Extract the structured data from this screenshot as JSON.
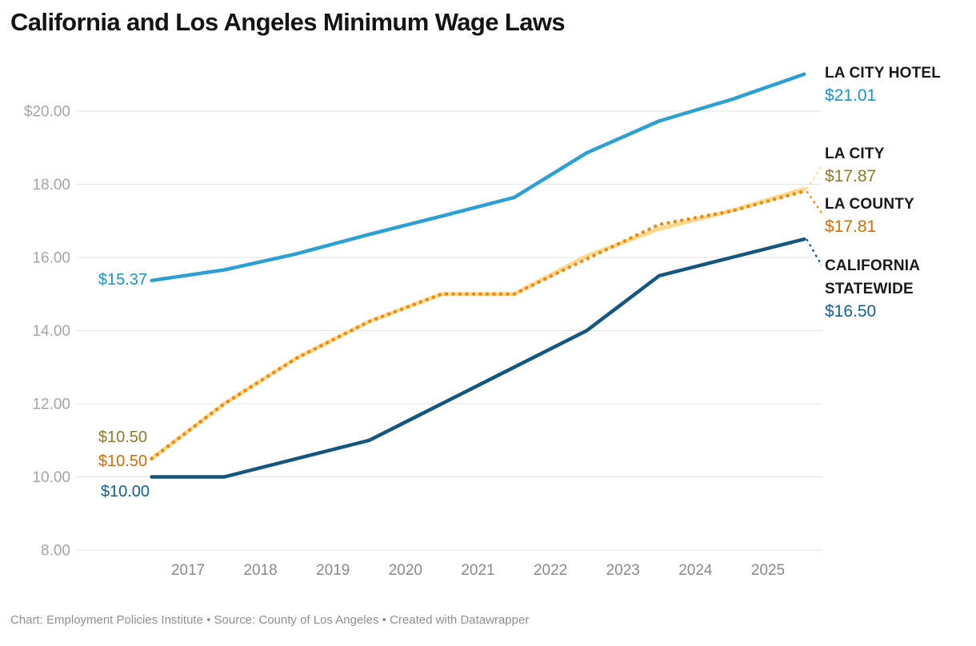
{
  "title": "California and Los Angeles Minimum Wage Laws",
  "footer": "Chart: Employment Policies Institute • Source: County of Los Angeles • Created with Datawrapper",
  "chart_data": {
    "type": "line",
    "title": "California and Los Angeles Minimum Wage Laws",
    "x": [
      2016.5,
      2017.5,
      2018.5,
      2019.5,
      2020.5,
      2021.5,
      2022.5,
      2023.5,
      2024.5,
      2025.5
    ],
    "x_tick_years": [
      2017,
      2018,
      2019,
      2020,
      2021,
      2022,
      2023,
      2024,
      2025
    ],
    "x_tick_labels": [
      "2017",
      "2018",
      "2019",
      "2020",
      "2021",
      "2022",
      "2023",
      "2024",
      "2025"
    ],
    "y_ticks": [
      20,
      18,
      16,
      14,
      12,
      10,
      8
    ],
    "y_tick_labels": [
      "$20.00",
      "18.00",
      "16.00",
      "14.00",
      "12.00",
      "10.00",
      "8.00"
    ],
    "ylim": [
      6.9,
      21.8
    ],
    "grid": true,
    "legend_position": "right-edge-direct-labels",
    "series": [
      {
        "id": "la-city-hotel",
        "name": "LA CITY HOTEL",
        "name_lines": [
          "LA CITY HOTEL"
        ],
        "color": "#2E9FD3",
        "value_color": "#1B93C5",
        "line_style": "solid",
        "start_label": "$15.37",
        "end_label": "$21.01",
        "values": [
          15.37,
          15.66,
          16.1,
          16.63,
          17.13,
          17.64,
          18.86,
          19.73,
          20.32,
          21.01
        ]
      },
      {
        "id": "la-city",
        "name": "LA CITY",
        "name_lines": [
          "LA CITY"
        ],
        "color": "#FBD98E",
        "value_color": "#8C7B2F",
        "line_style": "solid",
        "start_label": "$10.50",
        "end_label": "$17.87",
        "values": [
          10.5,
          12.0,
          13.25,
          14.25,
          15.0,
          15.0,
          16.04,
          16.78,
          17.28,
          17.87
        ]
      },
      {
        "id": "la-county",
        "name": "LA COUNTY",
        "name_lines": [
          "LA COUNTY"
        ],
        "color": "#F0890C",
        "value_color": "#CC6E0E",
        "line_style": "dotted",
        "start_label": "$10.50",
        "end_label": "$17.81",
        "values": [
          10.5,
          12.0,
          13.25,
          14.25,
          15.0,
          15.0,
          15.96,
          16.9,
          17.27,
          17.81
        ]
      },
      {
        "id": "california-statewide",
        "name": "CALIFORNIA STATEWIDE",
        "name_lines": [
          "CALIFORNIA",
          "STATEWIDE"
        ],
        "color": "#14567D",
        "value_color": "#14608F",
        "line_style": "solid",
        "start_label": "$10.00",
        "end_label": "$16.50",
        "values": [
          10.0,
          10.0,
          10.5,
          11.0,
          12.0,
          13.0,
          14.0,
          15.5,
          16.0,
          16.5
        ]
      }
    ]
  }
}
